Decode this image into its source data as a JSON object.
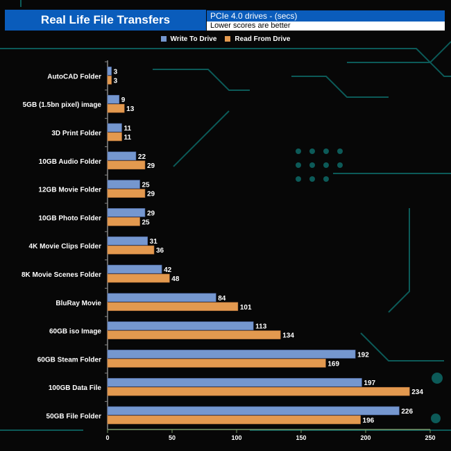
{
  "chart_data": {
    "type": "bar",
    "orientation": "horizontal",
    "title": "Real Life File Transfers",
    "subtitle": "PCIe 4.0 drives - (secs)",
    "note": "Lower scores are better",
    "categories": [
      "AutoCAD Folder",
      "5GB (1.5bn pixel) image",
      "3D Print Folder",
      "10GB Audio Folder",
      "12GB Movie Folder",
      "10GB Photo Folder",
      "4K Movie Clips Folder",
      "8K Movie Scenes Folder",
      "BluRay Movie",
      "60GB iso Image",
      "60GB Steam Folder",
      "100GB Data File",
      "50GB File Folder"
    ],
    "series": [
      {
        "name": "Write To  Drive",
        "color": "#7597cf",
        "values": [
          3,
          9,
          11,
          22,
          25,
          29,
          31,
          42,
          84,
          113,
          192,
          197,
          226
        ]
      },
      {
        "name": "Read From  Drive",
        "color": "#e3994f",
        "values": [
          3,
          13,
          11,
          29,
          29,
          25,
          36,
          48,
          101,
          134,
          169,
          234,
          196
        ]
      }
    ],
    "xlim": [
      0,
      250
    ],
    "xticks": [
      0,
      50,
      100,
      150,
      200,
      250
    ],
    "grid": false,
    "legend": "top"
  }
}
